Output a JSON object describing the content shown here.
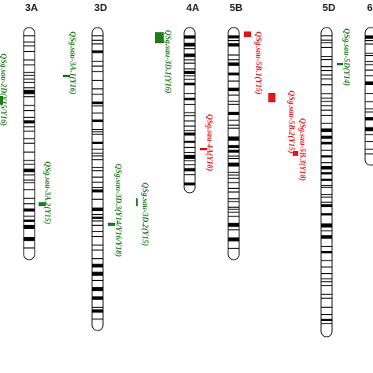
{
  "chromosomes": [
    {
      "label": "3A"
    },
    {
      "label": "3D"
    },
    {
      "label": "4A"
    },
    {
      "label": "5B"
    },
    {
      "label": "5D"
    },
    {
      "label": "6"
    }
  ],
  "qtls": [
    {
      "label": "QSg.sau-2D(Y15/Y16)"
    },
    {
      "label": "QSg.sau-3A.1(Y16)"
    },
    {
      "label": "QSg.sau-3A.2(Y15)"
    },
    {
      "label": "QSg.sau-3D.1(Y16)"
    },
    {
      "label": "QSg.sau-3D.2(Y15)"
    },
    {
      "label": "QSg.sau-3D.3(Y14/Y16/Y18)"
    },
    {
      "label": "QSg.sau-4A(Y18)"
    },
    {
      "label": "QSg.sau-5B.1(Y15)"
    },
    {
      "label": "QSg.sau-5B.2(Y15)"
    },
    {
      "label": "QSg.sau-5B.3(Y18)"
    },
    {
      "label": "QSg.sau-5D(Y14)"
    }
  ]
}
